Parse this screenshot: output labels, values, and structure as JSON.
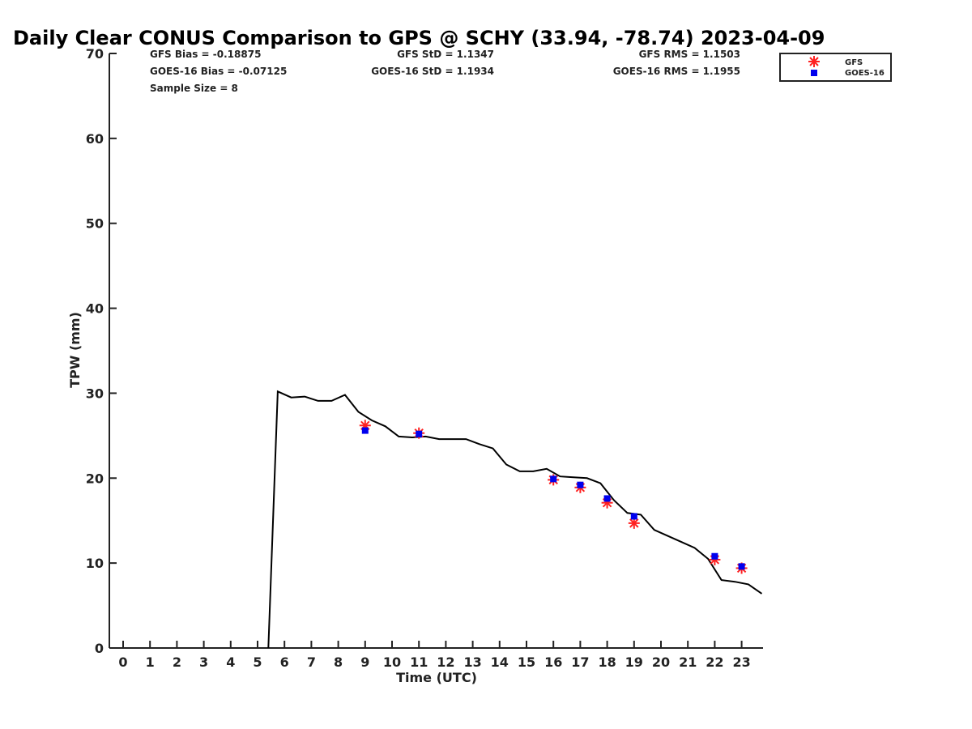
{
  "chart_data": {
    "type": "line",
    "title": "Daily Clear CONUS Comparison to GPS @ SCHY (33.94, -78.74) 2023-04-09",
    "xlabel": "Time (UTC)",
    "ylabel": "TPW (mm)",
    "xticks": [
      "0",
      "1",
      "2",
      "3",
      "4",
      "5",
      "6",
      "7",
      "8",
      "9",
      "10",
      "11",
      "12",
      "13",
      "14",
      "15",
      "16",
      "17",
      "18",
      "19",
      "20",
      "21",
      "22",
      "23"
    ],
    "yticks": [
      "0",
      "10",
      "20",
      "30",
      "40",
      "50",
      "60",
      "70"
    ],
    "ylim": [
      0,
      70
    ],
    "xlim": [
      -0.5,
      23.75
    ],
    "grid": false,
    "legend_position": "top-right",
    "stats": {
      "gfs_bias": "GFS Bias = -0.18875",
      "goes_bias": "GOES-16 Bias = -0.07125",
      "sample_size": "Sample Size = 8",
      "gfs_std": "GFS StD = 1.1347",
      "goes_std": "GOES-16 StD = 1.1934",
      "gfs_rms": "GFS RMS = 1.1503",
      "goes_rms": "GOES-16 RMS = 1.1955"
    },
    "series": [
      {
        "key": "gps",
        "style": "line",
        "color": "#000000",
        "x": [
          5.4,
          5.75,
          6.25,
          6.75,
          7.25,
          7.75,
          8.25,
          8.75,
          9.25,
          9.75,
          10.25,
          10.75,
          11.25,
          11.75,
          12.25,
          12.75,
          13.25,
          13.75,
          14.25,
          14.75,
          15.25,
          15.75,
          16.25,
          16.75,
          17.25,
          17.75,
          18.25,
          18.75,
          19.25,
          19.75,
          20.25,
          20.75,
          21.25,
          21.75,
          22.25,
          22.75,
          23.25,
          23.75
        ],
        "y": [
          0,
          30.2,
          29.5,
          29.6,
          29.1,
          29.1,
          29.8,
          27.8,
          26.8,
          26.1,
          24.9,
          24.8,
          24.9,
          24.6,
          24.6,
          24.6,
          24.0,
          23.5,
          21.6,
          20.8,
          20.8,
          21.1,
          20.2,
          20.1,
          20.0,
          19.4,
          17.4,
          15.9,
          15.7,
          13.9,
          13.2,
          12.5,
          11.8,
          10.5,
          8.0,
          7.8,
          7.5,
          6.4
        ]
      },
      {
        "name": "GFS",
        "style": "marker-asterisk",
        "color": "#ff2020",
        "x": [
          9,
          11,
          16,
          17,
          18,
          19,
          22,
          23
        ],
        "y": [
          26.2,
          25.3,
          19.8,
          18.9,
          17.1,
          14.7,
          10.4,
          9.4
        ]
      },
      {
        "name": "GOES-16",
        "style": "marker-square",
        "color": "#0000ee",
        "x": [
          9,
          11,
          16,
          17,
          18,
          19,
          22,
          23
        ],
        "y": [
          25.6,
          25.2,
          19.9,
          19.2,
          17.6,
          15.5,
          10.8,
          9.6
        ]
      }
    ]
  }
}
